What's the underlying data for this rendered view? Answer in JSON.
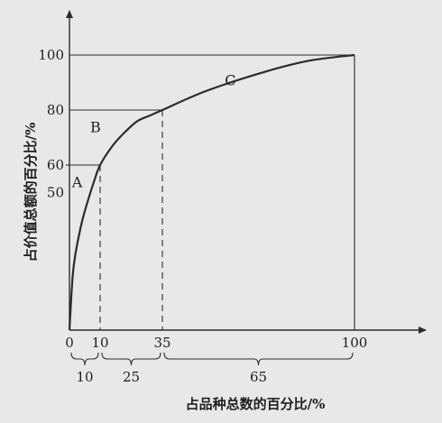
{
  "chart_data": {
    "type": "line",
    "xlabel": "占品种总数的百分比/%",
    "ylabel": "占价值总额的百分比/%",
    "xlim": [
      0,
      100
    ],
    "ylim": [
      0,
      100
    ],
    "x_ticks": [
      "0",
      "10",
      "35",
      "100"
    ],
    "y_ticks": [
      "50",
      "60",
      "80",
      "100"
    ],
    "series": [
      {
        "x": [
          0,
          1,
          2,
          4,
          6,
          8,
          10,
          15,
          20,
          25,
          30,
          35,
          50,
          70,
          85,
          100
        ],
        "values": [
          0,
          19,
          28,
          39,
          47,
          54,
          60,
          67,
          72,
          76,
          78,
          80,
          87,
          94,
          98,
          100
        ]
      }
    ],
    "zones": [
      {
        "label": "A",
        "width_label": "10"
      },
      {
        "label": "B",
        "width_label": "25"
      },
      {
        "label": "C",
        "width_label": "65"
      }
    ],
    "grid": false
  }
}
